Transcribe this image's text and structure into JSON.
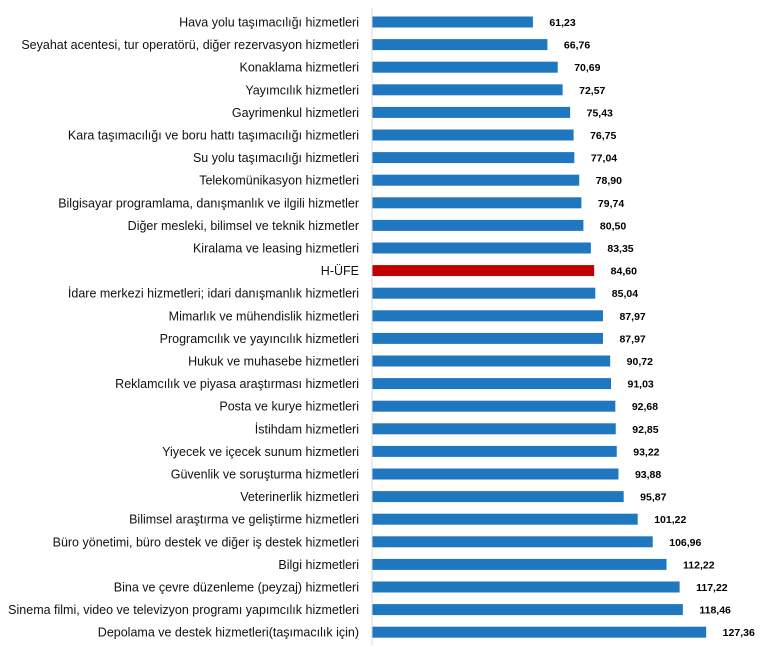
{
  "chart_data": {
    "type": "bar",
    "orientation": "horizontal",
    "title": "",
    "xlabel": "",
    "ylabel": "",
    "xlim": [
      0,
      140
    ],
    "grid": false,
    "legend": "none",
    "colors": {
      "default": "#1f77c0",
      "highlight": "#c00000"
    },
    "highlight_category": "H-ÜFE",
    "categories": [
      "Hava yolu taşımacılığı hizmetleri",
      "Seyahat acentesi, tur operatörü, diğer rezervasyon hizmetleri",
      "Konaklama hizmetleri",
      "Yayımcılık hizmetleri",
      "Gayrimenkul hizmetleri",
      "Kara taşımacılığı ve boru hattı taşımacılığı hizmetleri",
      "Su yolu taşımacılığı hizmetleri",
      "Telekomünikasyon hizmetleri",
      "Bilgisayar programlama, danışmanlık ve ilgili hizmetler",
      "Diğer mesleki, bilimsel ve teknik hizmetler",
      "Kiralama ve leasing hizmetleri",
      "H-ÜFE",
      "İdare merkezi hizmetleri; idari danışmanlık hizmetleri",
      "Mimarlık ve mühendislik hizmetleri",
      "Programcılık ve yayıncılık hizmetleri",
      "Hukuk ve muhasebe hizmetleri",
      "Reklamcılık ve piyasa araştırması hizmetleri",
      "Posta ve kurye hizmetleri",
      "İstihdam hizmetleri",
      "Yiyecek ve içecek sunum hizmetleri",
      "Güvenlik ve soruşturma hizmetleri",
      "Veterinerlik hizmetleri",
      "Bilimsel araştırma ve geliştirme hizmetleri",
      "Büro yönetimi, büro destek ve diğer iş destek hizmetleri",
      "Bilgi hizmetleri",
      "Bina ve çevre düzenleme (peyzaj) hizmetleri",
      "Sinema filmi, video ve televizyon programı yapımcılık hizmetleri",
      "Depolama ve destek hizmetleri(taşımacılık için)"
    ],
    "values": [
      61.23,
      66.76,
      70.69,
      72.57,
      75.43,
      76.75,
      77.04,
      78.9,
      79.74,
      80.5,
      83.35,
      84.6,
      85.04,
      87.97,
      87.97,
      90.72,
      91.03,
      92.68,
      92.85,
      93.22,
      93.88,
      95.87,
      101.22,
      106.96,
      112.22,
      117.22,
      118.46,
      127.36
    ],
    "value_labels": [
      "61,23",
      "66,76",
      "70,69",
      "72,57",
      "75,43",
      "76,75",
      "77,04",
      "78,90",
      "79,74",
      "80,50",
      "83,35",
      "84,60",
      "85,04",
      "87,97",
      "87,97",
      "90,72",
      "91,03",
      "92,68",
      "92,85",
      "93,22",
      "93,88",
      "95,87",
      "101,22",
      "106,96",
      "112,22",
      "117,22",
      "118,46",
      "127,36"
    ]
  }
}
